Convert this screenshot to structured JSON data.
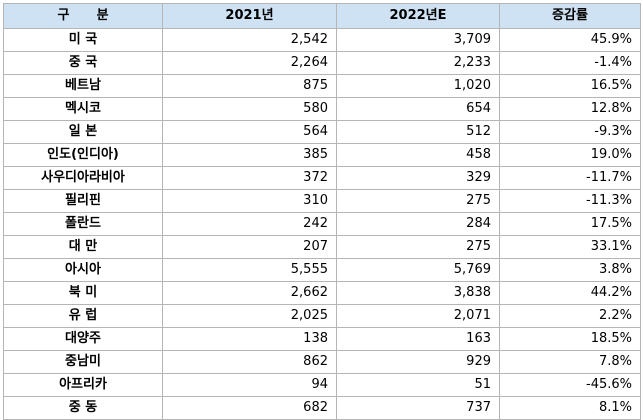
{
  "headers": [
    "구      분",
    "2021년",
    "2022년E",
    "증감률"
  ],
  "rows": [
    {
      "region": "미 국",
      "y2021": "2,542",
      "y2022e": "3,709",
      "change": "45.9%"
    },
    {
      "region": "중 국",
      "y2021": "2,264",
      "y2022e": "2,233",
      "change": "-1.4%"
    },
    {
      "region": "베트남",
      "y2021": "875",
      "y2022e": "1,020",
      "change": "16.5%"
    },
    {
      "region": "멕시코",
      "y2021": "580",
      "y2022e": "654",
      "change": "12.8%"
    },
    {
      "region": "일 본",
      "y2021": "564",
      "y2022e": "512",
      "change": "-9.3%"
    },
    {
      "region": "인도(인디아)",
      "y2021": "385",
      "y2022e": "458",
      "change": "19.0%"
    },
    {
      "region": "사우디아라비아",
      "y2021": "372",
      "y2022e": "329",
      "change": "-11.7%"
    },
    {
      "region": "필리핀",
      "y2021": "310",
      "y2022e": "275",
      "change": "-11.3%"
    },
    {
      "region": "폴란드",
      "y2021": "242",
      "y2022e": "284",
      "change": "17.5%"
    },
    {
      "region": "대 만",
      "y2021": "207",
      "y2022e": "275",
      "change": "33.1%"
    },
    {
      "region": "아시아",
      "y2021": "5,555",
      "y2022e": "5,769",
      "change": "3.8%"
    },
    {
      "region": "북 미",
      "y2021": "2,662",
      "y2022e": "3,838",
      "change": "44.2%"
    },
    {
      "region": "유 럽",
      "y2021": "2,025",
      "y2022e": "2,071",
      "change": "2.2%"
    },
    {
      "region": "대양주",
      "y2021": "138",
      "y2022e": "163",
      "change": "18.5%"
    },
    {
      "region": "중남미",
      "y2021": "862",
      "y2022e": "929",
      "change": "7.8%"
    },
    {
      "region": "아프리카",
      "y2021": "94",
      "y2022e": "51",
      "change": "-45.6%"
    },
    {
      "region": "중 동",
      "y2021": "682",
      "y2022e": "737",
      "change": "8.1%"
    }
  ]
}
